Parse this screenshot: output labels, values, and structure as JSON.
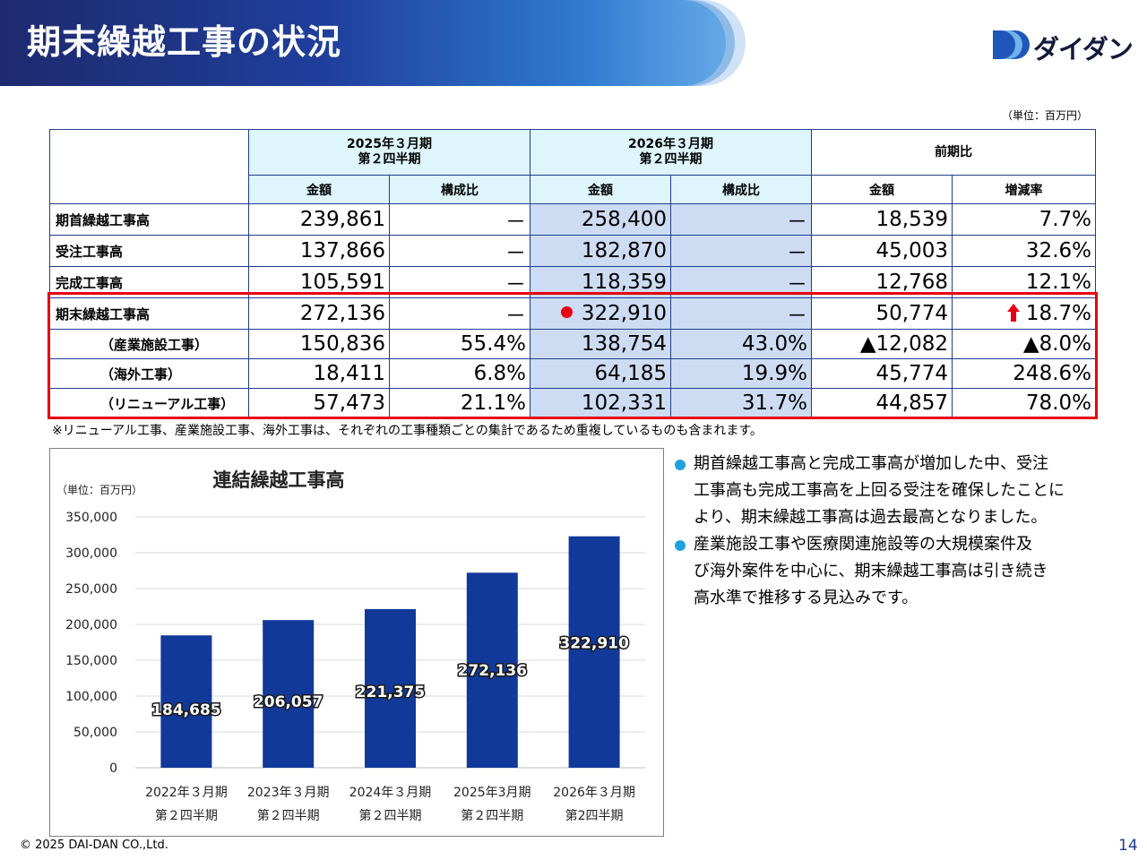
{
  "header": {
    "title": "期末繰越工事の状況",
    "logo_text": "ダイダン"
  },
  "colors": {
    "navy": "#1d2a6e",
    "bar": "#11399a",
    "highlight": "#cddcf2",
    "red": "#e60012",
    "bullet": "#21a0e0"
  },
  "table": {
    "unit": "（単位：百万円）",
    "group_headers": [
      {
        "line1": "2025年３月期",
        "line2": "第２四半期"
      },
      {
        "line1": "2026年３月期",
        "line2": "第２四半期"
      },
      {
        "line1": "前期比",
        "line2": ""
      }
    ],
    "sub_headers": [
      "金額",
      "構成比",
      "金額",
      "構成比",
      "金額",
      "増減率"
    ],
    "rows": [
      {
        "label": "期首繰越工事高",
        "prev_amount": "239,861",
        "prev_ratio": "－",
        "cur_amount": "258,400",
        "cur_ratio": "－",
        "diff_amount": "18,539",
        "diff_rate": "7.7%"
      },
      {
        "label": "受注工事高",
        "prev_amount": "137,866",
        "prev_ratio": "－",
        "cur_amount": "182,870",
        "cur_ratio": "－",
        "diff_amount": "45,003",
        "diff_rate": "32.6%"
      },
      {
        "label": "完成工事高",
        "prev_amount": "105,591",
        "prev_ratio": "－",
        "cur_amount": "118,359",
        "cur_ratio": "－",
        "diff_amount": "12,768",
        "diff_rate": "12.1%"
      },
      {
        "label": "期末繰越工事高",
        "prev_amount": "272,136",
        "prev_ratio": "－",
        "cur_amount": "322,910",
        "cur_ratio": "－",
        "diff_amount": "50,774",
        "diff_rate": "18.7%"
      },
      {
        "label": "（産業施設工事）",
        "prev_amount": "150,836",
        "prev_ratio": "55.4%",
        "cur_amount": "138,754",
        "cur_ratio": "43.0%",
        "diff_amount": "▲12,082",
        "diff_rate": "▲8.0%"
      },
      {
        "label": "（海外工事）",
        "prev_amount": "18,411",
        "prev_ratio": "6.8%",
        "cur_amount": "64,185",
        "cur_ratio": "19.9%",
        "diff_amount": "45,774",
        "diff_rate": "248.6%"
      },
      {
        "label": "（リニューアル工事）",
        "prev_amount": "57,473",
        "prev_ratio": "21.1%",
        "cur_amount": "102,331",
        "cur_ratio": "31.7%",
        "diff_amount": "44,857",
        "diff_rate": "78.0%"
      }
    ],
    "footnote": "※リニューアル工事、産業施設工事、海外工事は、それぞれの工事種類ごとの集計であるため重複しているものも含まれます。"
  },
  "chart_data": {
    "type": "bar",
    "title": "連結繰越工事高",
    "unit_label": "（単位：百万円）",
    "categories": [
      {
        "line1": "2022年３月期",
        "line2": "第２四半期"
      },
      {
        "line1": "2023年３月期",
        "line2": "第２四半期"
      },
      {
        "line1": "2024年３月期",
        "line2": "第２四半期"
      },
      {
        "line1": "2025年3月期",
        "line2": "第２四半期"
      },
      {
        "line1": "2026年３月期",
        "line2": "第2四半期"
      }
    ],
    "values": [
      184685,
      206057,
      221375,
      272136,
      322910
    ],
    "value_labels": [
      "184,685",
      "206,057",
      "221,375",
      "272,136",
      "322,910"
    ],
    "yticks": [
      "0",
      "50,000",
      "100,000",
      "150,000",
      "200,000",
      "250,000",
      "300,000",
      "350,000"
    ],
    "ylim": [
      0,
      350000
    ],
    "ystep": 50000,
    "label_positions": [
      0.44,
      0.45,
      0.48,
      0.5,
      0.54
    ],
    "grid": true
  },
  "bullets": [
    [
      "期首繰越工事高と完成工事高が増加した中、受注",
      "工事高も完成工事高を上回る受注を確保したことに",
      "より、期末繰越工事高は過去最高となりました。"
    ],
    [
      "産業施設工事や医療関連施設等の大規模案件及",
      "び海外案件を中心に、期末繰越工事高は引き続き",
      "高水準で推移する見込みです。"
    ]
  ],
  "footer": {
    "copyright": "© 2025 DAI-DAN CO.,Ltd.",
    "page": "14"
  }
}
